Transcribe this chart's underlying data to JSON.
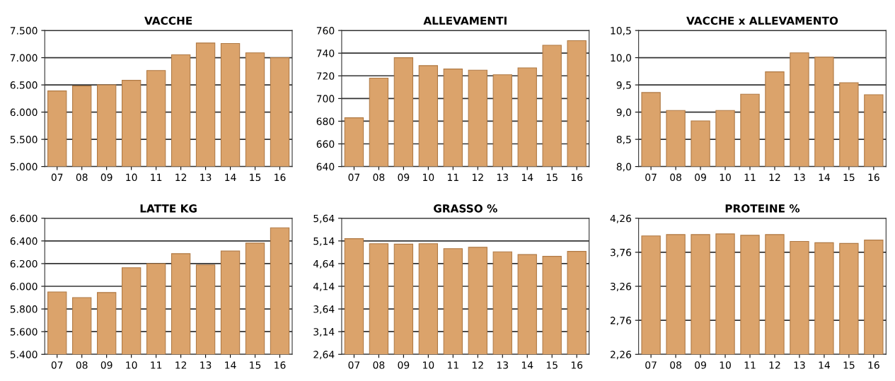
{
  "chart_data": [
    {
      "type": "bar",
      "title": "VACCHE",
      "categories": [
        "07",
        "08",
        "09",
        "10",
        "11",
        "12",
        "13",
        "14",
        "15",
        "16"
      ],
      "values": [
        6390,
        6480,
        6500,
        6585,
        6765,
        7053,
        7270,
        7262,
        7090,
        7000
      ],
      "color": "#dba36b",
      "ylim": [
        5000,
        7500
      ],
      "yticks": [
        {
          "value": 5000,
          "label": "5.000"
        },
        {
          "value": 5500,
          "label": "5.500"
        },
        {
          "value": 6000,
          "label": "6.000"
        },
        {
          "value": 6500,
          "label": "6.500"
        },
        {
          "value": 7000,
          "label": "7.000"
        },
        {
          "value": 7500,
          "label": "7.500"
        }
      ],
      "grid": "y"
    },
    {
      "type": "bar",
      "title": "ALLEVAMENTI",
      "categories": [
        "07",
        "08",
        "09",
        "10",
        "11",
        "12",
        "13",
        "14",
        "15",
        "16"
      ],
      "values": [
        683,
        718,
        736,
        729,
        726,
        725,
        721,
        727,
        747,
        751
      ],
      "color": "#dba36b",
      "ylim": [
        640,
        760
      ],
      "yticks": [
        640,
        660,
        680,
        700,
        720,
        740,
        760
      ],
      "grid": "y"
    },
    {
      "type": "bar",
      "title": "VACCHE x ALLEVAMENTO",
      "categories": [
        "07",
        "08",
        "09",
        "10",
        "11",
        "12",
        "13",
        "14",
        "15",
        "16"
      ],
      "values": [
        9.36,
        9.03,
        8.84,
        9.03,
        9.33,
        9.74,
        10.09,
        10.01,
        9.54,
        9.32
      ],
      "color": "#dba36b",
      "ylim": [
        8.0,
        10.5
      ],
      "yticks": [
        {
          "value": 8.0,
          "label": "8,0"
        },
        {
          "value": 8.5,
          "label": "8,5"
        },
        {
          "value": 9.0,
          "label": "9,0"
        },
        {
          "value": 9.5,
          "label": "9,5"
        },
        {
          "value": 10.0,
          "label": "10,0"
        },
        {
          "value": 10.5,
          "label": "10,5"
        }
      ],
      "grid": "y"
    },
    {
      "type": "bar",
      "title": "LATTE KG",
      "categories": [
        "07",
        "08",
        "09",
        "10",
        "11",
        "12",
        "13",
        "14",
        "15",
        "16"
      ],
      "values": [
        5950,
        5900,
        5945,
        6164,
        6200,
        6288,
        6189,
        6311,
        6381,
        6516
      ],
      "color": "#dba36b",
      "ylim": [
        5400,
        6600
      ],
      "yticks": [
        {
          "value": 5400,
          "label": "5.400"
        },
        {
          "value": 5600,
          "label": "5.600"
        },
        {
          "value": 5800,
          "label": "5.800"
        },
        {
          "value": 6000,
          "label": "6.000"
        },
        {
          "value": 6200,
          "label": "6.200"
        },
        {
          "value": 6400,
          "label": "6.400"
        },
        {
          "value": 6600,
          "label": "6.600"
        }
      ],
      "grid": "y"
    },
    {
      "type": "bar",
      "title": "GRASSO %",
      "categories": [
        "07",
        "08",
        "09",
        "10",
        "11",
        "12",
        "13",
        "14",
        "15",
        "16"
      ],
      "values": [
        5.19,
        5.08,
        5.07,
        5.08,
        4.97,
        5.0,
        4.9,
        4.84,
        4.8,
        4.91
      ],
      "color": "#dba36b",
      "ylim": [
        2.64,
        5.64
      ],
      "yticks": [
        {
          "value": 2.64,
          "label": "2,64"
        },
        {
          "value": 3.14,
          "label": "3,14"
        },
        {
          "value": 3.64,
          "label": "3,64"
        },
        {
          "value": 4.14,
          "label": "4,14"
        },
        {
          "value": 4.64,
          "label": "4,64"
        },
        {
          "value": 5.14,
          "label": "5,14"
        },
        {
          "value": 5.64,
          "label": "5,64"
        }
      ],
      "grid": "y"
    },
    {
      "type": "bar",
      "title": "PROTEINE %",
      "categories": [
        "07",
        "08",
        "09",
        "10",
        "11",
        "12",
        "13",
        "14",
        "15",
        "16"
      ],
      "values": [
        4.0,
        4.02,
        4.02,
        4.03,
        4.01,
        4.02,
        3.92,
        3.9,
        3.89,
        3.94
      ],
      "color": "#dba36b",
      "ylim": [
        2.26,
        4.26
      ],
      "yticks": [
        {
          "value": 2.26,
          "label": "2,26"
        },
        {
          "value": 2.76,
          "label": "2,76"
        },
        {
          "value": 3.26,
          "label": "3,26"
        },
        {
          "value": 3.76,
          "label": "3,76"
        },
        {
          "value": 4.26,
          "label": "4,26"
        }
      ],
      "grid": "y"
    }
  ]
}
